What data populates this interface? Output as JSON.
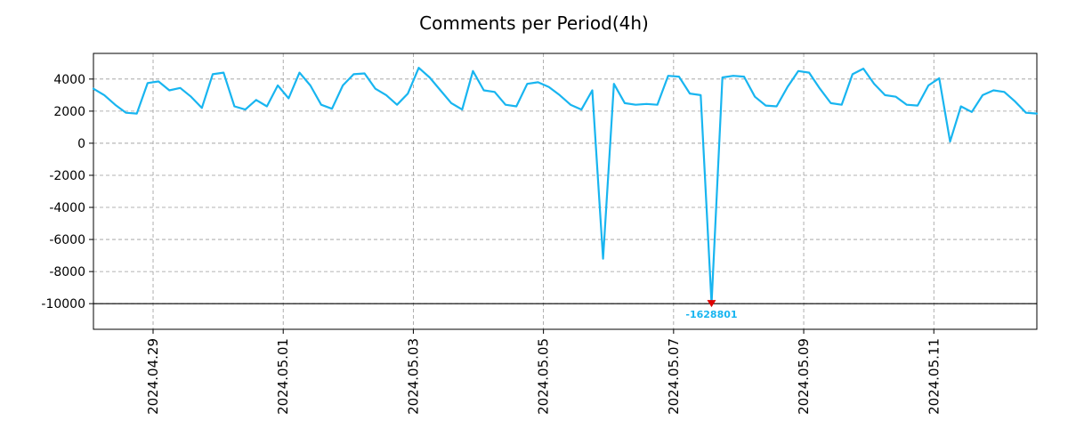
{
  "chart_data": {
    "type": "line",
    "title": "Comments per Period(4h)",
    "xlabel": "",
    "ylabel": "",
    "x_start": "2024-04-28 02:00",
    "x_step_hours": 4,
    "values": [
      3400,
      3000,
      2400,
      1900,
      1850,
      3750,
      3850,
      3300,
      3450,
      2900,
      2200,
      4300,
      4400,
      2300,
      2100,
      2700,
      2300,
      3600,
      2800,
      4400,
      3600,
      2400,
      2150,
      3600,
      4300,
      4350,
      3400,
      3000,
      2400,
      3100,
      4700,
      4100,
      3300,
      2500,
      2100,
      4500,
      3300,
      3200,
      2400,
      2300,
      3700,
      3800,
      3500,
      3000,
      2400,
      2100,
      3300,
      -7200,
      3700,
      2500,
      2400,
      2450,
      2400,
      4200,
      4150,
      3100,
      3000,
      -1628801,
      4100,
      4200,
      4150,
      2900,
      2350,
      2300,
      3500,
      4500,
      4400,
      3400,
      2500,
      2400,
      4300,
      4650,
      3700,
      3000,
      2900,
      2400,
      2350,
      3600,
      4050,
      100,
      2300,
      1950,
      3000,
      3300,
      3200,
      2600,
      1900,
      1850
    ],
    "x_ticks": [
      {
        "label": "2024.04.29",
        "index": 5.5
      },
      {
        "label": "2024.05.01",
        "index": 17.5
      },
      {
        "label": "2024.05.03",
        "index": 29.5
      },
      {
        "label": "2024.05.05",
        "index": 41.5
      },
      {
        "label": "2024.05.07",
        "index": 53.5
      },
      {
        "label": "2024.05.09",
        "index": 65.5
      },
      {
        "label": "2024.05.11",
        "index": 77.5
      }
    ],
    "y_ticks": [
      4000,
      2000,
      0,
      -2000,
      -4000,
      -6000,
      -8000,
      -10000
    ],
    "ylim": [
      -11600,
      5600
    ],
    "clip_min": -10000,
    "baseline": -10000,
    "grid": true,
    "legend": null,
    "line_color": "#18b5f0",
    "marker_color": "#dd0000",
    "annotation": {
      "text": "-1628801",
      "value": -1628801,
      "at_index": 57
    }
  }
}
